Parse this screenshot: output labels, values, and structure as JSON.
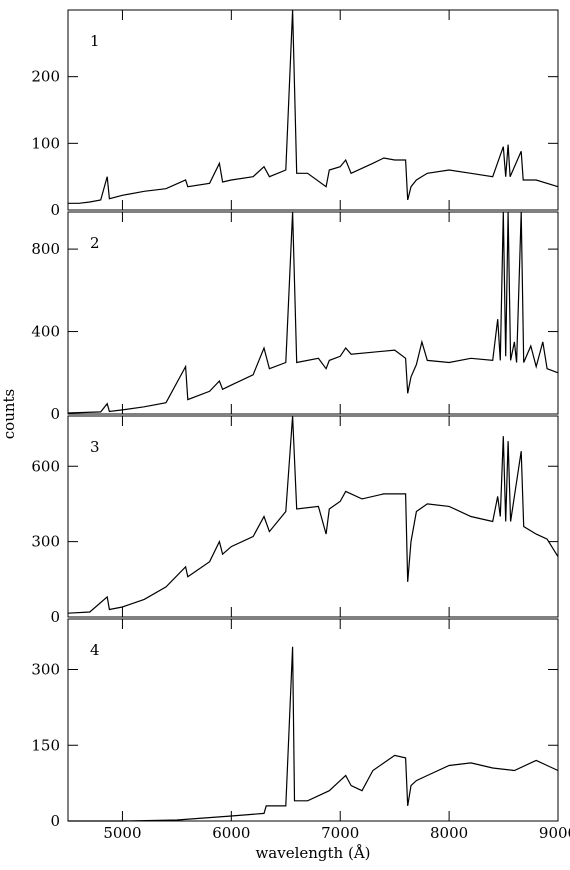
{
  "ylabel": "counts",
  "xlabel": "wavelength (Å)",
  "chart_data": [
    {
      "type": "line",
      "label": "1",
      "color": "#000000",
      "xlim": [
        4500,
        9000
      ],
      "ylim": [
        0,
        300
      ],
      "yticks": [
        0,
        100,
        200
      ],
      "xticks": [
        5000,
        6000,
        7000,
        8000,
        9000
      ],
      "x": [
        4500,
        4600,
        4700,
        4800,
        4860,
        4880,
        5000,
        5200,
        5400,
        5580,
        5600,
        5800,
        5890,
        5920,
        6000,
        6200,
        6300,
        6350,
        6500,
        6563,
        6600,
        6700,
        6870,
        6900,
        7000,
        7050,
        7100,
        7300,
        7400,
        7500,
        7600,
        7620,
        7650,
        7700,
        7800,
        8000,
        8200,
        8400,
        8498,
        8520,
        8542,
        8560,
        8662,
        8680,
        8800,
        9000
      ],
      "values": [
        10,
        10,
        12,
        15,
        50,
        17,
        22,
        28,
        32,
        45,
        35,
        40,
        70,
        42,
        45,
        50,
        65,
        50,
        60,
        300,
        55,
        55,
        35,
        60,
        65,
        75,
        55,
        70,
        78,
        75,
        75,
        15,
        35,
        45,
        55,
        60,
        55,
        50,
        95,
        50,
        98,
        50,
        88,
        45,
        45,
        35
      ]
    },
    {
      "type": "line",
      "label": "2",
      "color": "#000000",
      "xlim": [
        4500,
        9000
      ],
      "ylim": [
        0,
        980
      ],
      "yticks": [
        0,
        400,
        800
      ],
      "xticks": [
        5000,
        6000,
        7000,
        8000,
        9000
      ],
      "x": [
        4500,
        4800,
        4860,
        4880,
        5000,
        5200,
        5400,
        5580,
        5600,
        5800,
        5890,
        5920,
        6000,
        6200,
        6300,
        6350,
        6500,
        6563,
        6600,
        6800,
        6870,
        6900,
        7000,
        7050,
        7100,
        7300,
        7500,
        7600,
        7620,
        7650,
        7700,
        7750,
        7800,
        8000,
        8200,
        8400,
        8446,
        8470,
        8498,
        8520,
        8542,
        8565,
        8600,
        8620,
        8662,
        8685,
        8750,
        8800,
        8860,
        8900,
        9000
      ],
      "values": [
        5,
        10,
        50,
        12,
        20,
        35,
        55,
        230,
        70,
        110,
        160,
        120,
        140,
        190,
        320,
        220,
        250,
        980,
        250,
        270,
        220,
        260,
        280,
        320,
        290,
        300,
        310,
        270,
        100,
        180,
        240,
        350,
        260,
        250,
        270,
        260,
        460,
        260,
        980,
        280,
        980,
        260,
        350,
        250,
        980,
        250,
        330,
        230,
        350,
        220,
        200
      ]
    },
    {
      "type": "line",
      "label": "3",
      "color": "#000000",
      "xlim": [
        4500,
        9000
      ],
      "ylim": [
        0,
        800
      ],
      "yticks": [
        0,
        300,
        600
      ],
      "xticks": [
        5000,
        6000,
        7000,
        8000,
        9000
      ],
      "x": [
        4500,
        4700,
        4860,
        4880,
        5000,
        5200,
        5400,
        5580,
        5600,
        5800,
        5890,
        5920,
        6000,
        6200,
        6300,
        6350,
        6500,
        6563,
        6600,
        6800,
        6870,
        6900,
        7000,
        7050,
        7200,
        7400,
        7600,
        7620,
        7650,
        7700,
        7800,
        8000,
        8200,
        8400,
        8446,
        8470,
        8498,
        8520,
        8542,
        8565,
        8662,
        8685,
        8800,
        8900,
        9000
      ],
      "values": [
        15,
        20,
        80,
        30,
        40,
        70,
        120,
        200,
        160,
        220,
        300,
        250,
        280,
        320,
        400,
        340,
        420,
        800,
        430,
        440,
        330,
        430,
        460,
        500,
        470,
        490,
        490,
        140,
        300,
        420,
        450,
        440,
        400,
        380,
        480,
        400,
        720,
        380,
        700,
        380,
        660,
        360,
        330,
        310,
        240
      ]
    },
    {
      "type": "line",
      "label": "4",
      "color": "#000000",
      "xlim": [
        4500,
        9000
      ],
      "ylim": [
        0,
        400
      ],
      "yticks": [
        0,
        150,
        300
      ],
      "xticks": [
        5000,
        6000,
        7000,
        8000,
        9000
      ],
      "x": [
        4500,
        5000,
        5500,
        6000,
        6300,
        6320,
        6500,
        6563,
        6580,
        6700,
        6900,
        7000,
        7050,
        7100,
        7200,
        7300,
        7500,
        7600,
        7620,
        7650,
        7700,
        7800,
        8000,
        8200,
        8400,
        8600,
        8800,
        8900,
        9000
      ],
      "values": [
        0,
        0,
        2,
        10,
        15,
        30,
        30,
        345,
        40,
        40,
        60,
        80,
        90,
        70,
        60,
        100,
        130,
        125,
        30,
        70,
        80,
        90,
        110,
        115,
        105,
        100,
        120,
        110,
        100
      ]
    }
  ]
}
